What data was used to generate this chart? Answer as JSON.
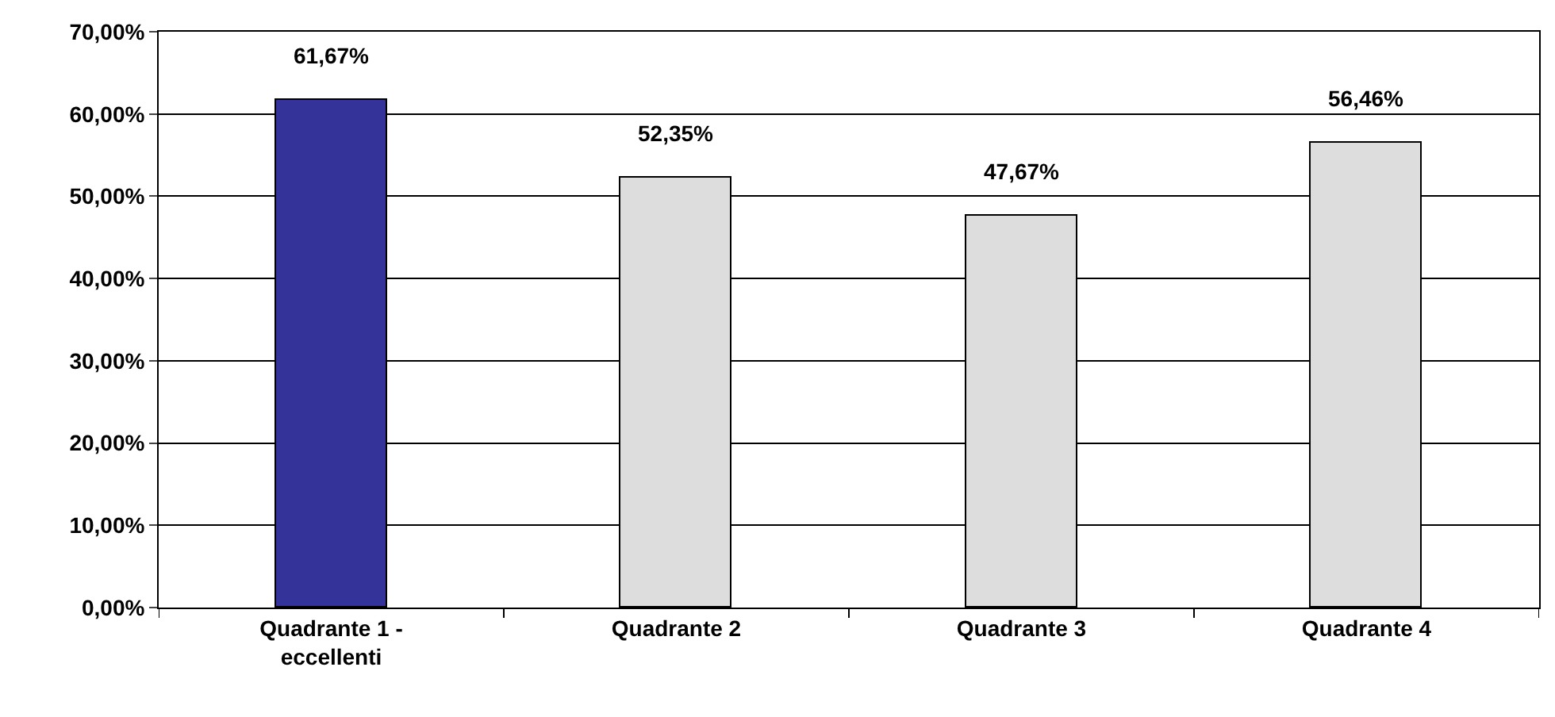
{
  "chart_data": {
    "type": "bar",
    "categories": [
      "Quadrante 1 - eccellenti",
      "Quadrante 2",
      "Quadrante 3",
      "Quadrante 4"
    ],
    "values": [
      61.67,
      52.35,
      47.67,
      56.46
    ],
    "value_labels": [
      "61,67%",
      "52,35%",
      "47,67%",
      "56,46%"
    ],
    "colors": [
      "#333399",
      "#dddddd",
      "#dddddd",
      "#dddddd"
    ],
    "ylim": [
      0,
      70
    ],
    "yticks": [
      {
        "value": 0,
        "label": "0,00%"
      },
      {
        "value": 10,
        "label": "10,00%"
      },
      {
        "value": 20,
        "label": "20,00%"
      },
      {
        "value": 30,
        "label": "30,00%"
      },
      {
        "value": 40,
        "label": "40,00%"
      },
      {
        "value": 50,
        "label": "50,00%"
      },
      {
        "value": 60,
        "label": "60,00%"
      },
      {
        "value": 70,
        "label": "70,00%"
      }
    ],
    "grid": "y",
    "legend": false
  }
}
